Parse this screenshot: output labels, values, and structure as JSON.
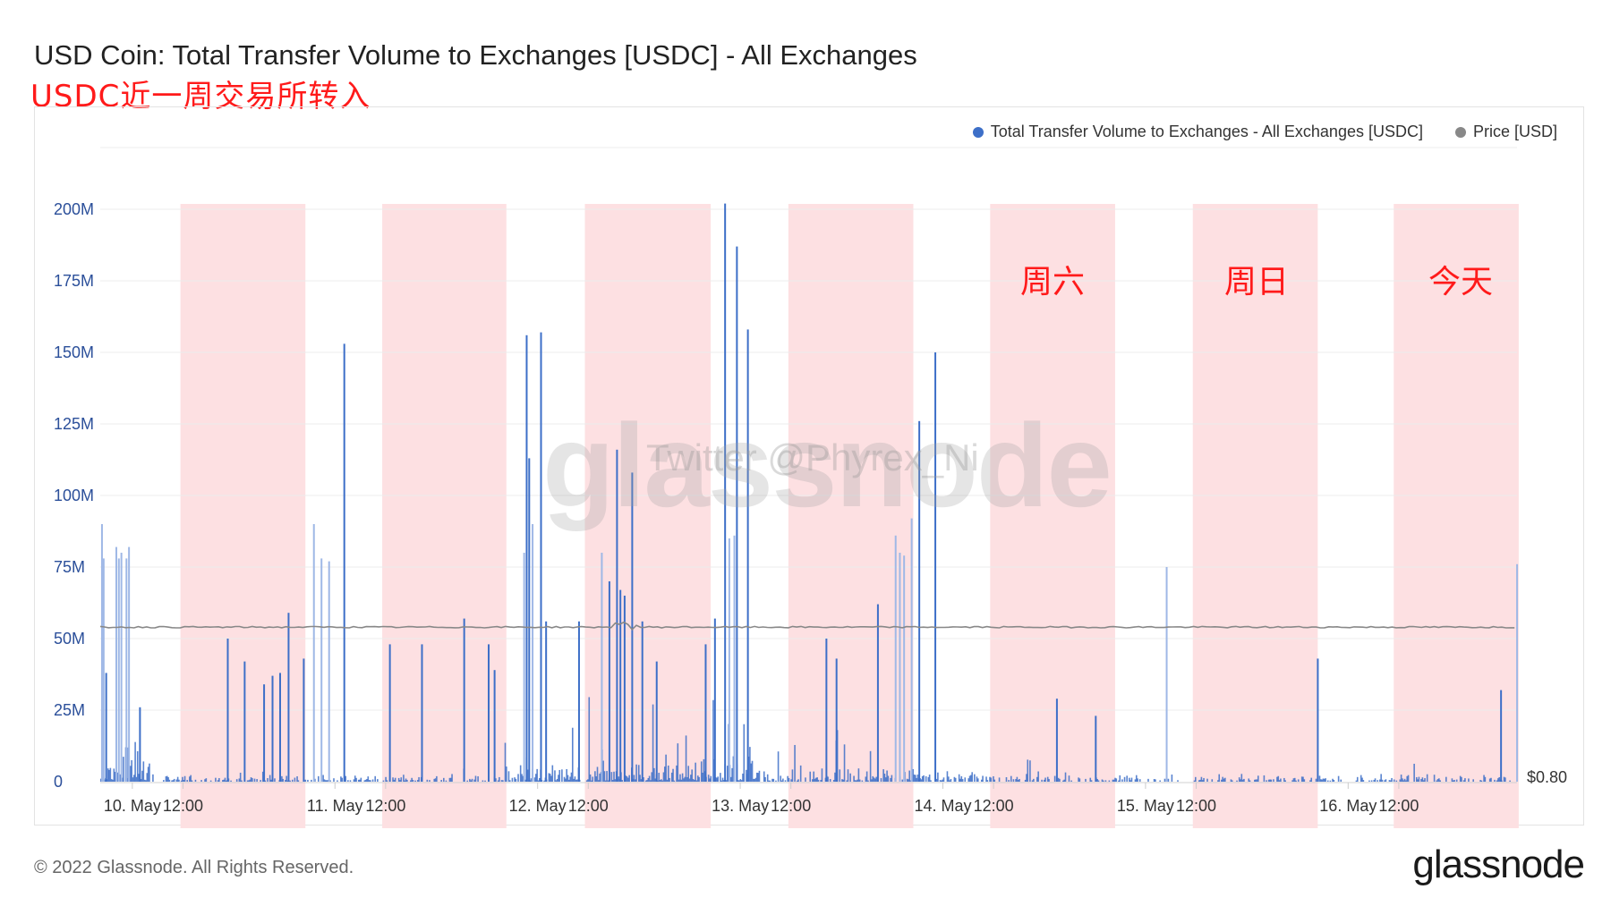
{
  "header": {
    "title": "USD Coin: Total Transfer Volume to Exchanges [USDC] - All Exchanges",
    "subtitle": "USDC近一周交易所转入"
  },
  "legend": {
    "items": [
      {
        "label": "Total Transfer Volume to Exchanges - All Exchanges [USDC]",
        "color": "#3d6fc8"
      },
      {
        "label": "Price [USD]",
        "color": "#888888"
      }
    ]
  },
  "annotations": {
    "day_labels": [
      "周六",
      "周日",
      "今天"
    ],
    "twitter": "Twitter @Phyrex_Ni",
    "watermark": "glassnode"
  },
  "footer": {
    "copyright": "© 2022 Glassnode. All Rights Reserved.",
    "logo": "glassnode"
  },
  "colors": {
    "bar": "#3d6fc8",
    "bar_light": "#9fb8e6",
    "price": "#888888",
    "highlight": "#fde0e2"
  },
  "chart_data": {
    "type": "bar",
    "title": "USD Coin: Total Transfer Volume to Exchanges [USDC] - All Exchanges",
    "y_ticks": [
      "0",
      "25M",
      "50M",
      "75M",
      "100M",
      "125M",
      "150M",
      "175M",
      "200M"
    ],
    "y_tick_values": [
      0,
      25,
      50,
      75,
      100,
      125,
      150,
      175,
      200
    ],
    "ylim": [
      0,
      200
    ],
    "y_unit": "M USDC",
    "x_ticks": [
      "10. May",
      "12:00",
      "11. May",
      "12:00",
      "12. May",
      "12:00",
      "13. May",
      "12:00",
      "14. May",
      "12:00",
      "15. May",
      "12:00",
      "16. May",
      "12:00"
    ],
    "x_tick_hours": [
      6,
      12,
      30,
      36,
      54,
      60,
      78,
      84,
      102,
      108,
      126,
      132,
      150,
      156
    ],
    "x_range_hours": [
      2.2,
      170
    ],
    "highlight_bands_hours": [
      [
        11.7,
        26.5
      ],
      [
        35.6,
        50.3
      ],
      [
        59.6,
        74.5
      ],
      [
        83.7,
        98.5
      ],
      [
        107.6,
        122.4
      ],
      [
        131.6,
        146.4
      ],
      [
        155.4,
        170.2
      ]
    ],
    "price_label": "$0.80",
    "price_series": {
      "name": "Price [USD]",
      "level_on_left_axis": 54
    },
    "series": [
      {
        "name": "Total Transfer Volume to Exchanges - All Exchanges [USDC]",
        "spikes": [
          [
            2.3,
            90
          ],
          [
            2.5,
            78
          ],
          [
            2.8,
            38
          ],
          [
            4.0,
            82
          ],
          [
            4.3,
            78
          ],
          [
            4.6,
            80
          ],
          [
            5.2,
            78
          ],
          [
            5.5,
            82
          ],
          [
            6.8,
            26
          ],
          [
            17.2,
            50
          ],
          [
            19.2,
            42
          ],
          [
            21.5,
            34
          ],
          [
            22.5,
            37
          ],
          [
            23.4,
            38
          ],
          [
            24.4,
            59
          ],
          [
            26.2,
            43
          ],
          [
            27.4,
            90
          ],
          [
            28.3,
            78
          ],
          [
            29.2,
            77
          ],
          [
            31.0,
            153
          ],
          [
            36.4,
            48
          ],
          [
            40.2,
            48
          ],
          [
            45.2,
            57
          ],
          [
            48.1,
            48
          ],
          [
            48.8,
            39
          ],
          [
            52.3,
            80
          ],
          [
            52.6,
            156
          ],
          [
            52.9,
            113
          ],
          [
            53.3,
            90
          ],
          [
            54.3,
            157
          ],
          [
            54.9,
            56
          ],
          [
            58.8,
            56
          ],
          [
            61.5,
            80
          ],
          [
            62.4,
            70
          ],
          [
            63.3,
            116
          ],
          [
            63.7,
            67
          ],
          [
            64.2,
            65
          ],
          [
            65.1,
            108
          ],
          [
            66.3,
            56
          ],
          [
            68.0,
            42
          ],
          [
            73.8,
            48
          ],
          [
            74.9,
            57
          ],
          [
            76.1,
            202
          ],
          [
            76.6,
            85
          ],
          [
            77.2,
            86
          ],
          [
            77.5,
            187
          ],
          [
            78.8,
            158
          ],
          [
            88.1,
            50
          ],
          [
            89.3,
            43
          ],
          [
            94.2,
            62
          ],
          [
            96.3,
            86
          ],
          [
            96.8,
            80
          ],
          [
            97.3,
            79
          ],
          [
            98.2,
            92
          ],
          [
            99.1,
            126
          ],
          [
            101.0,
            150
          ],
          [
            115.4,
            29
          ],
          [
            120.0,
            23
          ],
          [
            128.4,
            75
          ],
          [
            146.3,
            43
          ],
          [
            168.0,
            32
          ],
          [
            169.9,
            76
          ]
        ]
      }
    ]
  }
}
